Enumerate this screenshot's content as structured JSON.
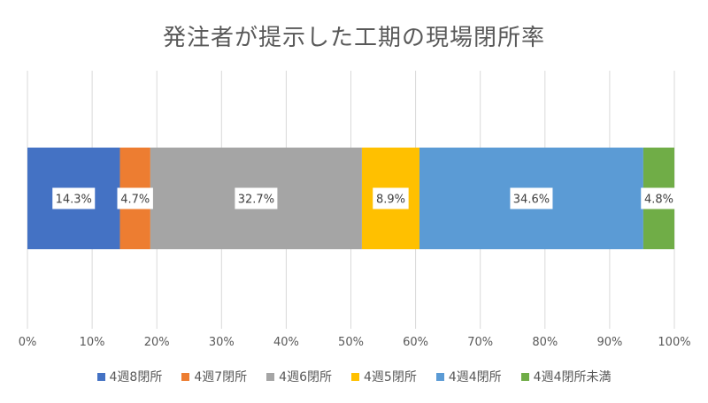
{
  "colors": {
    "gridline": "#d9d9d9",
    "axis_text": "#595959",
    "label_box": "#ffffff",
    "label_text": "#404040"
  },
  "chart_data": {
    "type": "bar",
    "orientation": "horizontal",
    "stacked": "percent",
    "title": "発注者が提示した工期の現場閉所率",
    "xlim": [
      0,
      100
    ],
    "grid": true,
    "legend_position": "bottom",
    "x_ticks": [
      "0%",
      "10%",
      "20%",
      "30%",
      "40%",
      "50%",
      "60%",
      "70%",
      "80%",
      "90%",
      "100%"
    ],
    "series": [
      {
        "name": "4週8閉所",
        "value": 14.3,
        "label": "14.3%",
        "color": "#4472c4"
      },
      {
        "name": "4週7閉所",
        "value": 4.7,
        "label": "4.7%",
        "color": "#ed7d31"
      },
      {
        "name": "4週6閉所",
        "value": 32.7,
        "label": "32.7%",
        "color": "#a5a5a5"
      },
      {
        "name": "4週5閉所",
        "value": 8.9,
        "label": "8.9%",
        "color": "#ffc000"
      },
      {
        "name": "4週4閉所",
        "value": 34.6,
        "label": "34.6%",
        "color": "#5b9bd5"
      },
      {
        "name": "4週4閉所未満",
        "value": 4.8,
        "label": "4.8%",
        "color": "#70ad47"
      }
    ]
  }
}
